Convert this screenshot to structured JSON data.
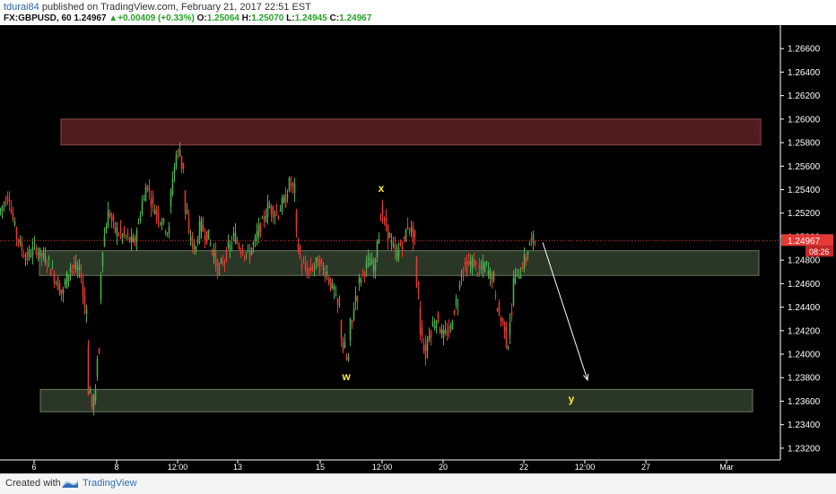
{
  "header": {
    "author": "tdurai84",
    "published_text": "published on TradingView.com, February 21, 2017 22:51 EST",
    "symbol": "FX:GBPUSD, 60",
    "price": "1.24967",
    "change": "+0.00409 (+0.33%)",
    "o_label": "O:",
    "o_value": "1.25064",
    "h_label": "H:",
    "h_value": "1.25070",
    "l_label": "L:",
    "l_value": "1.24945",
    "c_label": "C:",
    "c_value": "1.24967"
  },
  "footer": {
    "created_with": "Created with",
    "brand": "TradingView"
  },
  "colors": {
    "background": "#000000",
    "up": "#4caf50",
    "down": "#e53935",
    "resistance_zone": "#5a1f22",
    "support_zone": "#3a4a33",
    "price_line": "#e53935",
    "annotation": "#ffeb3b",
    "arrow": "#ffffff"
  },
  "chart_data": {
    "type": "candlestick",
    "symbol": "FX:GBPUSD",
    "timeframe": "60",
    "ylim": [
      1.231,
      1.268
    ],
    "y_ticks": [
      "1.26600",
      "1.26400",
      "1.26200",
      "1.26000",
      "1.25800",
      "1.25600",
      "1.25400",
      "1.25200",
      "1.25000",
      "1.24800",
      "1.24600",
      "1.24400",
      "1.24200",
      "1.24000",
      "1.23800",
      "1.23600",
      "1.23400",
      "1.23200"
    ],
    "x_ticks": [
      "6",
      "8",
      "12:00",
      "13",
      "15",
      "12:00",
      "20",
      "22",
      "12:00",
      "27",
      "Mar",
      "12:00"
    ],
    "current_price_label": "1.24967",
    "countdown_label": "08:26",
    "path_points": [
      [
        0,
        1.252
      ],
      [
        10,
        1.2535
      ],
      [
        20,
        1.25
      ],
      [
        30,
        1.2482
      ],
      [
        40,
        1.249
      ],
      [
        55,
        1.2478
      ],
      [
        70,
        1.2452
      ],
      [
        80,
        1.2475
      ],
      [
        90,
        1.247
      ],
      [
        96,
        1.244
      ],
      [
        100,
        1.237
      ],
      [
        103,
        1.2355
      ],
      [
        107,
        1.2365
      ],
      [
        110,
        1.24
      ],
      [
        113,
        1.247
      ],
      [
        117,
        1.25
      ],
      [
        122,
        1.252
      ],
      [
        130,
        1.2505
      ],
      [
        140,
        1.25
      ],
      [
        150,
        1.2495
      ],
      [
        155,
        1.251
      ],
      [
        160,
        1.253
      ],
      [
        165,
        1.2545
      ],
      [
        172,
        1.2525
      ],
      [
        180,
        1.2515
      ],
      [
        188,
        1.2505
      ],
      [
        195,
        1.256
      ],
      [
        198,
        1.257
      ],
      [
        201,
        1.2575
      ],
      [
        204,
        1.256
      ],
      [
        208,
        1.252
      ],
      [
        212,
        1.25
      ],
      [
        218,
        1.249
      ],
      [
        225,
        1.251
      ],
      [
        232,
        1.25
      ],
      [
        238,
        1.2488
      ],
      [
        245,
        1.247
      ],
      [
        250,
        1.248
      ],
      [
        256,
        1.249
      ],
      [
        262,
        1.25
      ],
      [
        270,
        1.249
      ],
      [
        278,
        1.2485
      ],
      [
        285,
        1.2495
      ],
      [
        292,
        1.251
      ],
      [
        300,
        1.2525
      ],
      [
        310,
        1.252
      ],
      [
        318,
        1.253
      ],
      [
        324,
        1.2545
      ],
      [
        328,
        1.254
      ],
      [
        333,
        1.249
      ],
      [
        338,
        1.2475
      ],
      [
        345,
        1.247
      ],
      [
        355,
        1.2478
      ],
      [
        365,
        1.247
      ],
      [
        372,
        1.2455
      ],
      [
        378,
        1.244
      ],
      [
        384,
        1.2405
      ],
      [
        388,
        1.2395
      ],
      [
        392,
        1.2425
      ],
      [
        398,
        1.245
      ],
      [
        405,
        1.247
      ],
      [
        412,
        1.2478
      ],
      [
        418,
        1.2475
      ],
      [
        422,
        1.25
      ],
      [
        426,
        1.252
      ],
      [
        430,
        1.251
      ],
      [
        435,
        1.25
      ],
      [
        442,
        1.2485
      ],
      [
        450,
        1.2495
      ],
      [
        456,
        1.251
      ],
      [
        462,
        1.25
      ],
      [
        466,
        1.2455
      ],
      [
        470,
        1.242
      ],
      [
        475,
        1.24
      ],
      [
        480,
        1.242
      ],
      [
        488,
        1.243
      ],
      [
        495,
        1.2415
      ],
      [
        502,
        1.242
      ],
      [
        510,
        1.2445
      ],
      [
        515,
        1.247
      ],
      [
        520,
        1.2475
      ],
      [
        528,
        1.2478
      ],
      [
        535,
        1.247
      ],
      [
        542,
        1.2475
      ],
      [
        550,
        1.2465
      ],
      [
        555,
        1.244
      ],
      [
        562,
        1.2425
      ],
      [
        566,
        1.241
      ],
      [
        570,
        1.243
      ],
      [
        574,
        1.2465
      ],
      [
        580,
        1.247
      ],
      [
        586,
        1.248
      ],
      [
        592,
        1.2495
      ],
      [
        597,
        1.2497
      ]
    ],
    "zones": [
      {
        "name": "resistance",
        "x_start": 68,
        "x_end": 848,
        "y_top": 1.26,
        "y_bottom": 1.2578
      },
      {
        "name": "middle",
        "x_start": 44,
        "x_end": 846,
        "y_top": 1.2488,
        "y_bottom": 1.2467
      },
      {
        "name": "support",
        "x_start": 45,
        "x_end": 839,
        "y_top": 1.237,
        "y_bottom": 1.2351
      }
    ],
    "annotations": [
      {
        "text": "x",
        "x": 425,
        "y": 1.2538
      },
      {
        "text": "w",
        "x": 386,
        "y": 1.2378
      },
      {
        "text": "y",
        "x": 637,
        "y": 1.2359
      }
    ],
    "arrow": {
      "x1": 605,
      "y1": 1.2495,
      "x2": 655,
      "y2": 1.2378
    },
    "current_price": 1.24967
  }
}
